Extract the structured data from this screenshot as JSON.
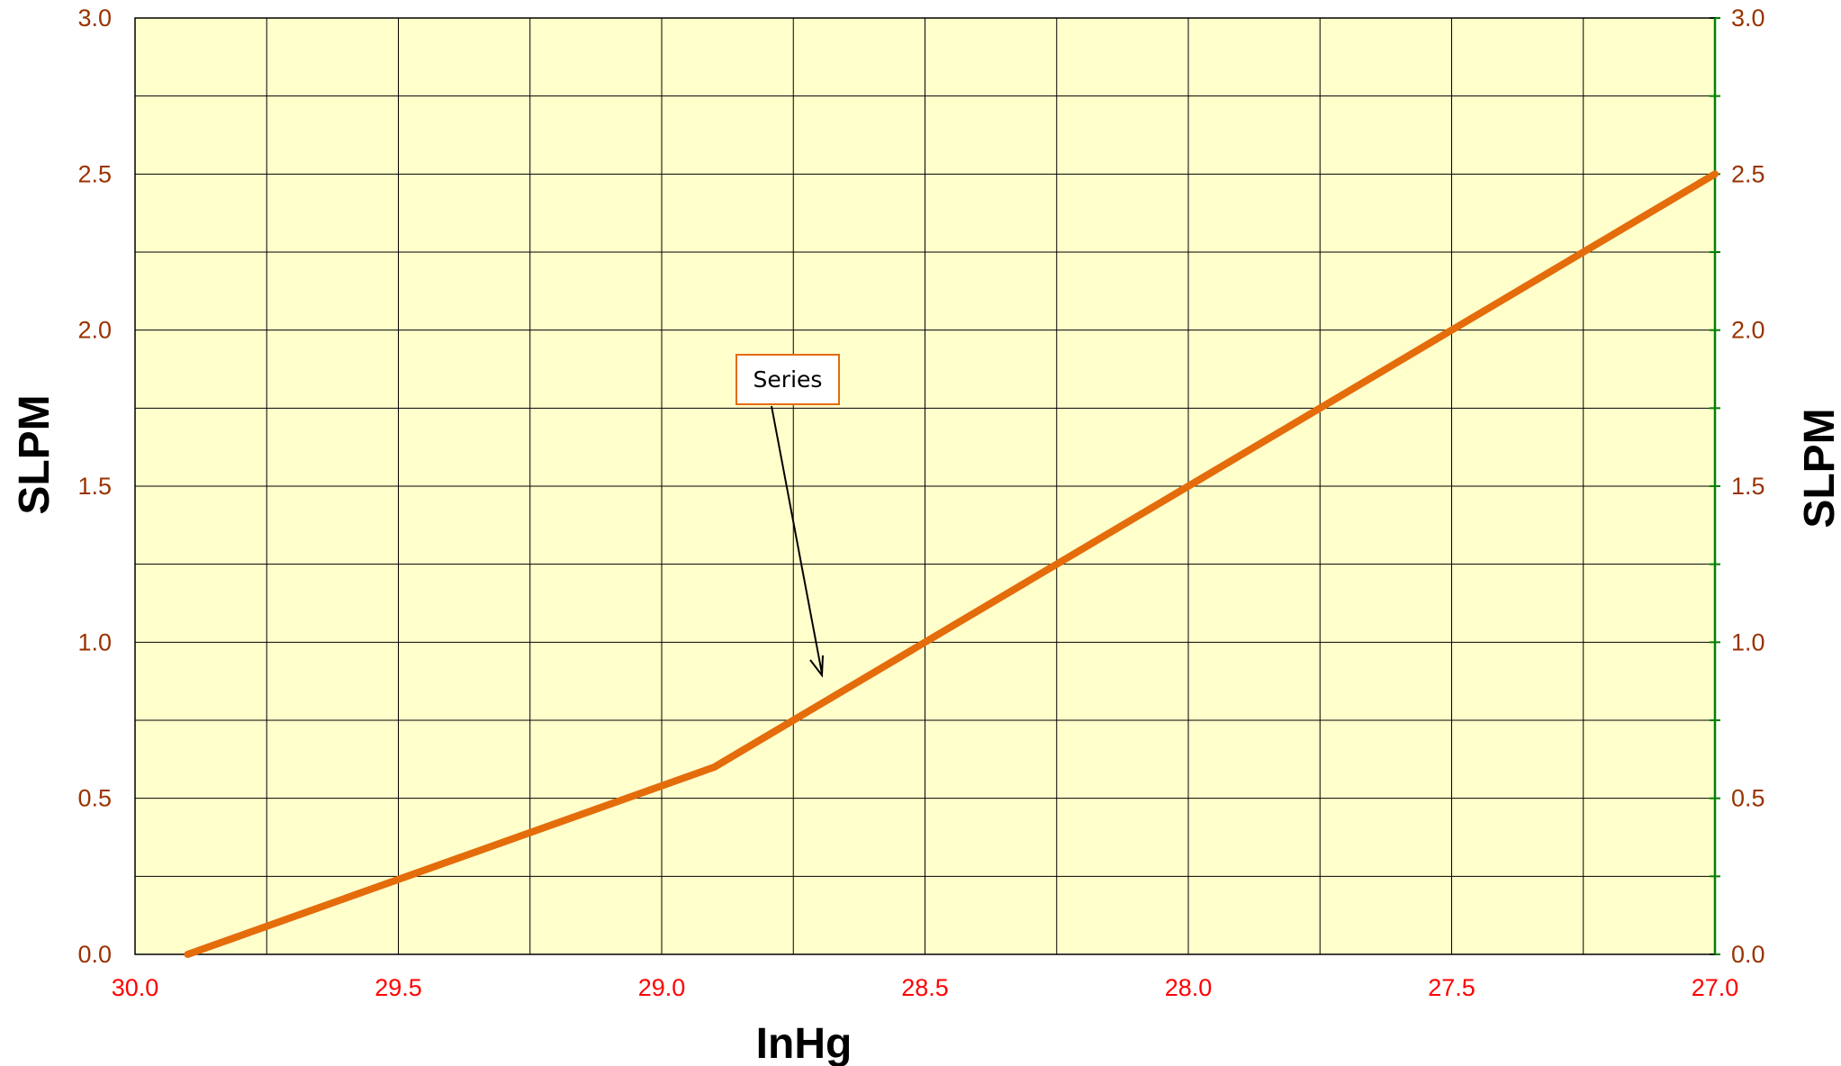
{
  "chart_data": {
    "type": "line",
    "xlabel": "InHg",
    "ylabel": "SLPM",
    "y2label": "SLPM",
    "xlim": [
      30.0,
      27.0
    ],
    "ylim": [
      0.0,
      3.0
    ],
    "x_reversed": true,
    "x_ticks": [
      "30.0",
      "29.5",
      "29.0",
      "28.5",
      "28.0",
      "27.5",
      "27.0"
    ],
    "y_ticks": [
      "0.0",
      "0.5",
      "1.0",
      "1.5",
      "2.0",
      "2.5",
      "3.0"
    ],
    "grid": true,
    "series": [
      {
        "x": [
          29.9,
          28.9,
          28.0,
          27.0
        ],
        "y": [
          0.0,
          0.6,
          1.5,
          2.5
        ]
      }
    ],
    "annotation": {
      "text": "Series",
      "points_to": [
        28.7,
        0.9
      ]
    },
    "colors": {
      "plot_background": "#ffffcc",
      "line": "#e46c0a",
      "grid": "#000000",
      "left_ticks": "#993300",
      "x_ticks": "#ff0000",
      "right_axis": "#008000",
      "annotation_border": "#e46c0a"
    }
  }
}
